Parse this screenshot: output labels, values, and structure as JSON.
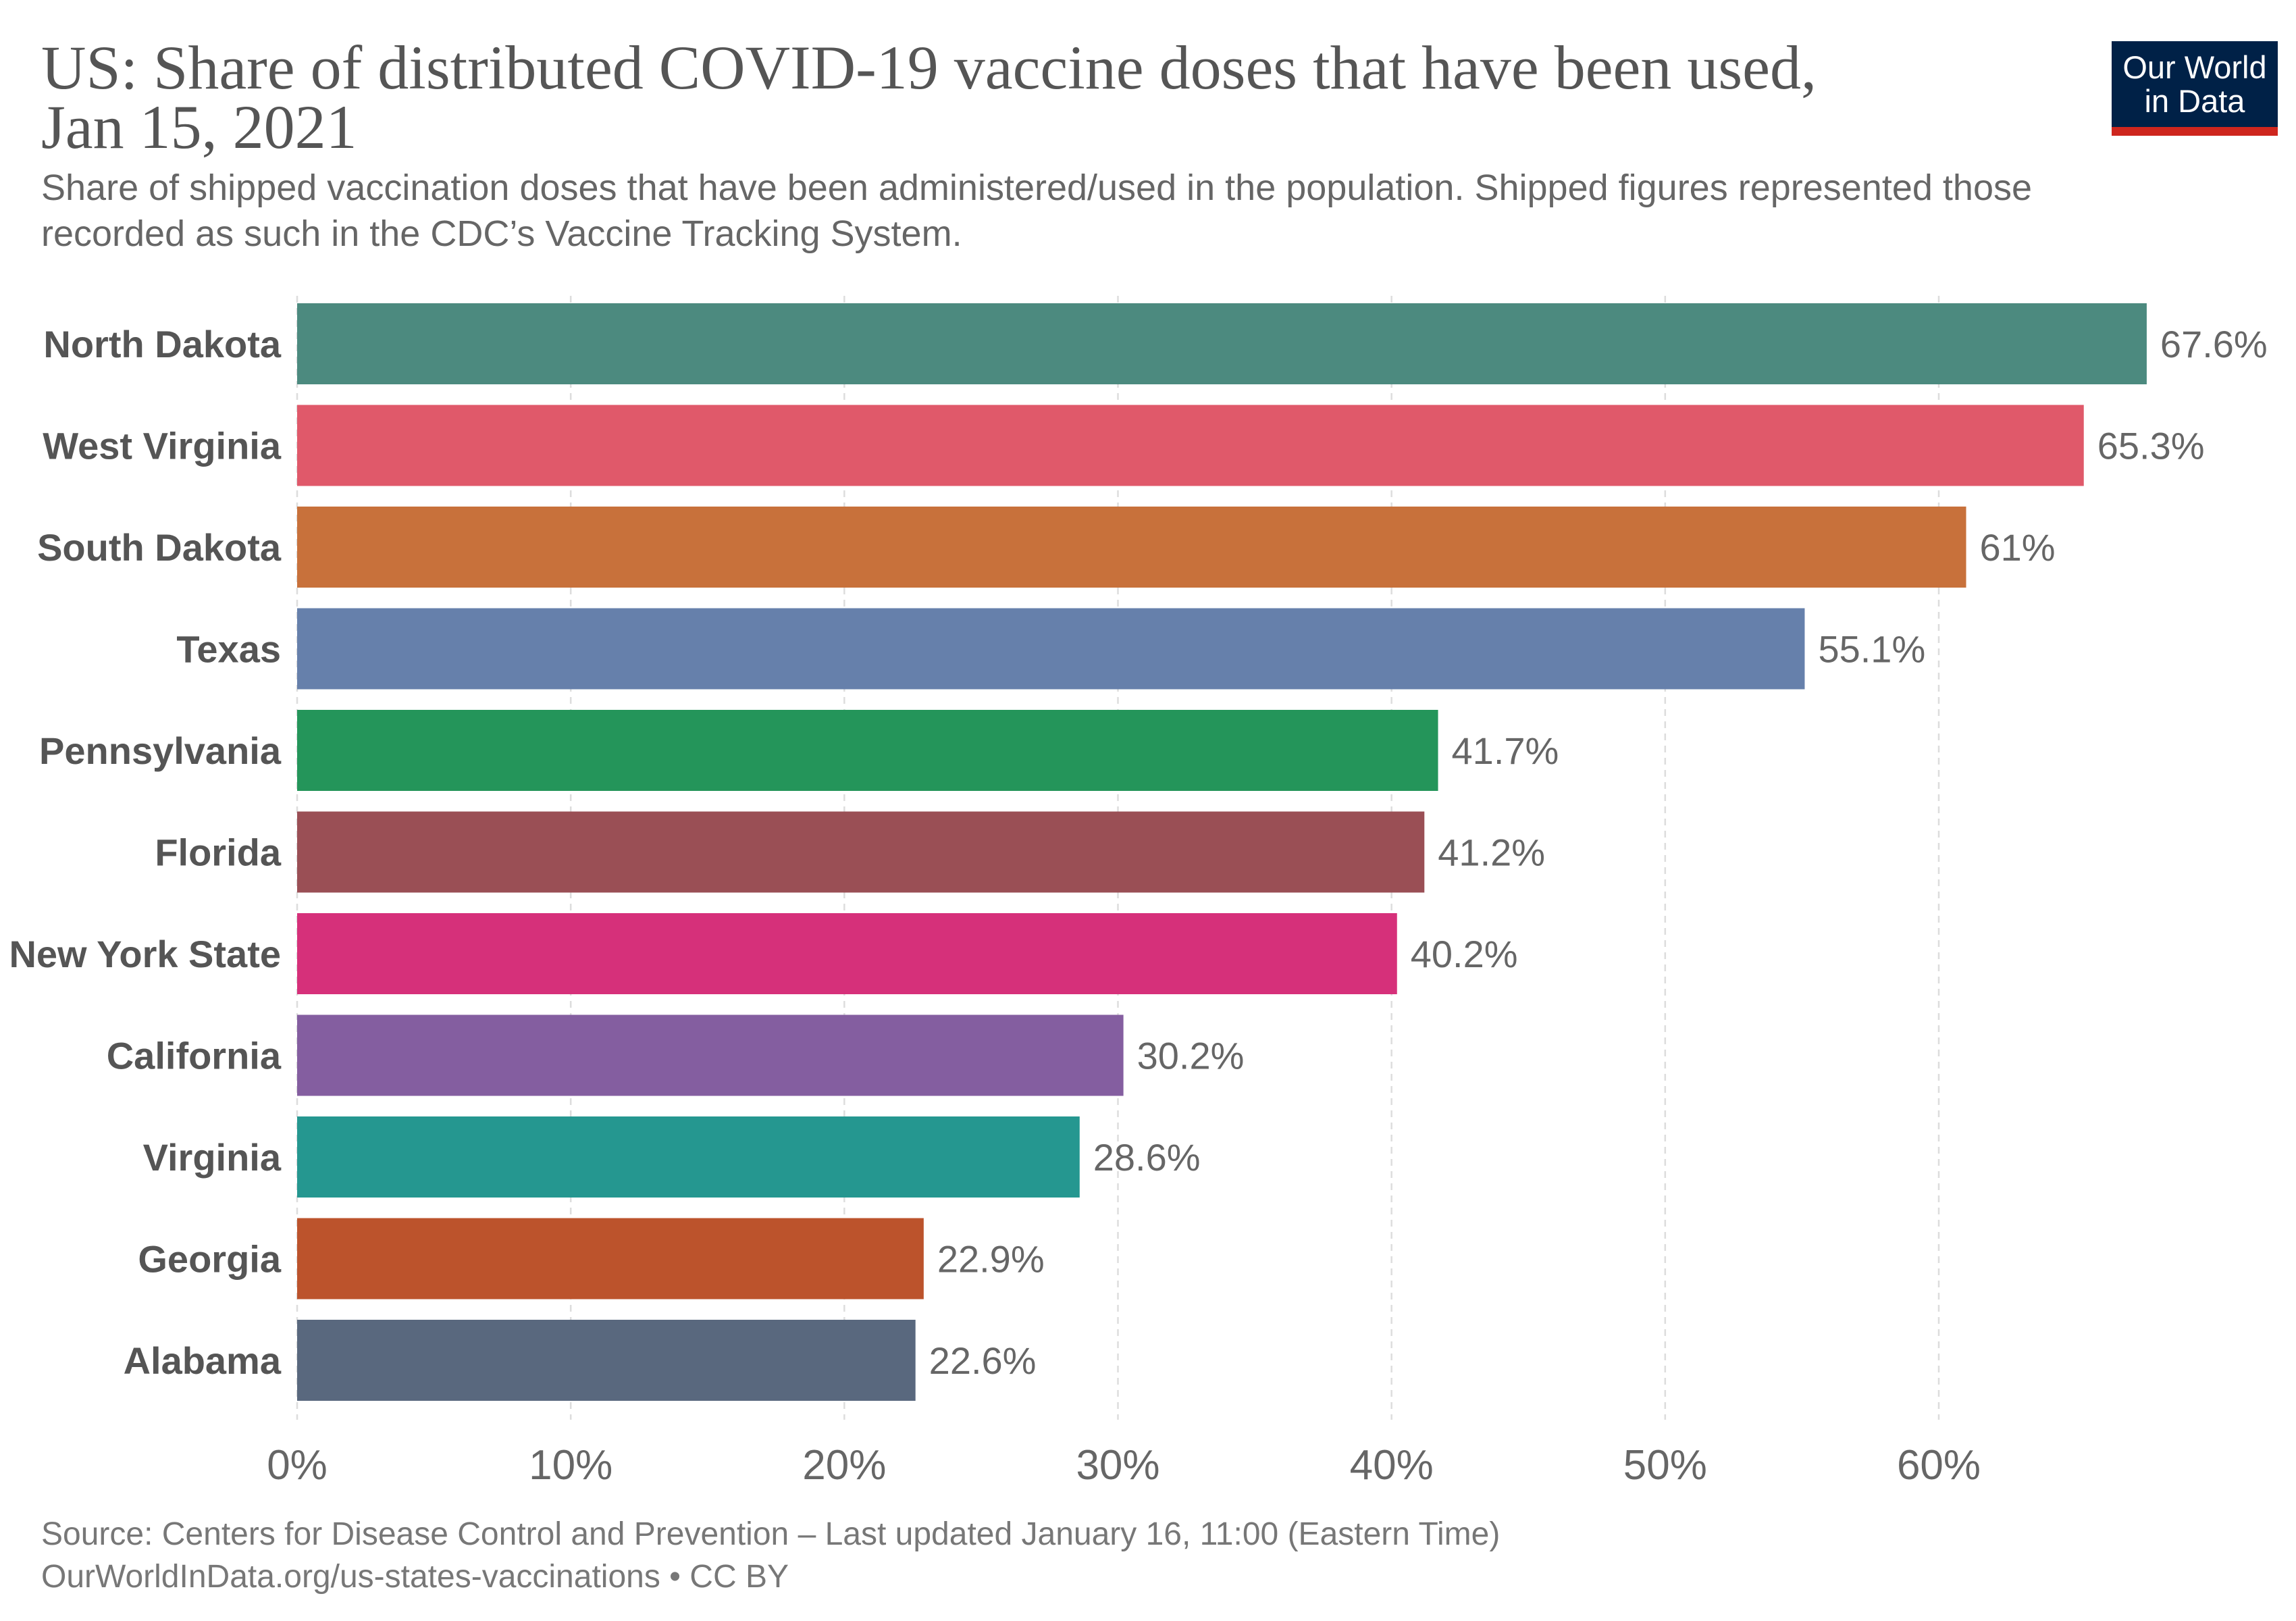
{
  "logo": {
    "line1": "Our World",
    "line2": "in Data",
    "background": "#002147",
    "accent": "#CE261E"
  },
  "footer": {
    "source": "Source: Centers for Disease Control and Prevention – Last updated January 16, 11:00 (Eastern Time)",
    "url_license": "OurWorldInData.org/us-states-vaccinations • CC BY"
  },
  "chart_data": {
    "type": "bar",
    "orientation": "horizontal",
    "title": "US: Share of distributed COVID-19 vaccine doses that have been used, Jan 15, 2021",
    "subtitle": "Share of shipped vaccination doses that have been administered/used in the population. Shipped figures represented those recorded as such in the CDC’s Vaccine Tracking System.",
    "xlabel": "",
    "ylabel": "",
    "grid": "vertical dashed",
    "categories": [
      "North Dakota",
      "West Virginia",
      "South Dakota",
      "Texas",
      "Pennsylvania",
      "Florida",
      "New York State",
      "California",
      "Virginia",
      "Georgia",
      "Alabama"
    ],
    "values": [
      67.6,
      65.3,
      61,
      55.1,
      41.7,
      41.2,
      40.2,
      30.2,
      28.6,
      22.9,
      22.6
    ],
    "value_labels": [
      "67.6%",
      "65.3%",
      "61%",
      "55.1%",
      "41.7%",
      "41.2%",
      "40.2%",
      "30.2%",
      "28.6%",
      "22.9%",
      "22.6%"
    ],
    "colors": [
      "#4C8A7F",
      "#E0596A",
      "#C8713B",
      "#6680AB",
      "#24955A",
      "#9A4F55",
      "#D6307A",
      "#845EA0",
      "#259790",
      "#BC532C",
      "#59687E"
    ],
    "xticks": [
      0,
      10,
      20,
      30,
      40,
      50,
      60
    ],
    "xtick_labels": [
      "0%",
      "10%",
      "20%",
      "30%",
      "40%",
      "50%",
      "60%"
    ]
  }
}
